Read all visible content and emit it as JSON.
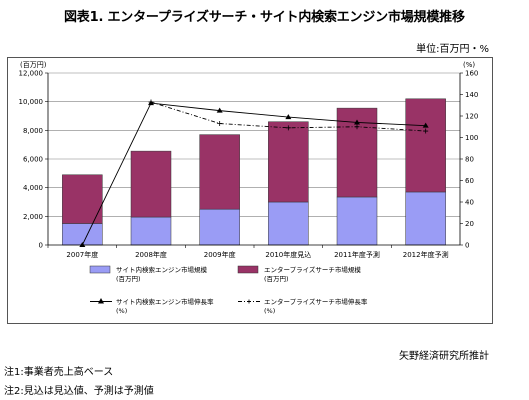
{
  "title": "図表1. エンタープライズサーチ・サイト内検索エンジン市場規模推移",
  "unit_label": "単位:百万円・%",
  "chart_data": {
    "type": "bar",
    "stacked": true,
    "categories": [
      "2007年度",
      "2008年度",
      "2009年度",
      "2010年度見込",
      "2011年度予測",
      "2012年度予測"
    ],
    "left_axis": {
      "unit": "(百万円)",
      "ylim": [
        0,
        12000
      ],
      "ticks": [
        "0",
        "2,000",
        "4,000",
        "6,000",
        "8,000",
        "10,000",
        "12,000"
      ],
      "tick_values": [
        0,
        2000,
        4000,
        6000,
        8000,
        10000,
        12000
      ]
    },
    "right_axis": {
      "unit": "(%)",
      "ylim": [
        0,
        160
      ],
      "ticks": [
        "0",
        "20",
        "40",
        "60",
        "80",
        "100",
        "120",
        "140",
        "160"
      ],
      "tick_values": [
        0,
        20,
        40,
        60,
        80,
        100,
        120,
        140,
        160
      ]
    },
    "series": [
      {
        "name": "サイト内検索エンジン市場規模",
        "unit_note": "(百万円)",
        "kind": "bar",
        "color": "#9a9cf5",
        "values": [
          1500,
          1950,
          2500,
          3000,
          3350,
          3700
        ]
      },
      {
        "name": "エンタープライズサーチ市場規模",
        "unit_note": "(百万円)",
        "kind": "bar",
        "color": "#993366",
        "values": [
          3400,
          4600,
          5200,
          5600,
          6200,
          6500
        ]
      },
      {
        "name": "サイト内検索エンジン市場伸長率",
        "unit_note": "(%)",
        "kind": "line",
        "axis": "right",
        "color": "#000000",
        "values": [
          0,
          132,
          125,
          119,
          114,
          111
        ]
      },
      {
        "name": "エンタープライズサーチ市場伸長率",
        "unit_note": "(%)",
        "kind": "line",
        "axis": "right",
        "dashed": true,
        "color": "#000000",
        "values": [
          null,
          133,
          113,
          109,
          110,
          106
        ]
      }
    ],
    "grid": true
  },
  "notes": [
    "注1:事業者売上高ベース",
    "注2:見込は見込値、予測は予測値"
  ],
  "source": "矢野経済研究所推計"
}
